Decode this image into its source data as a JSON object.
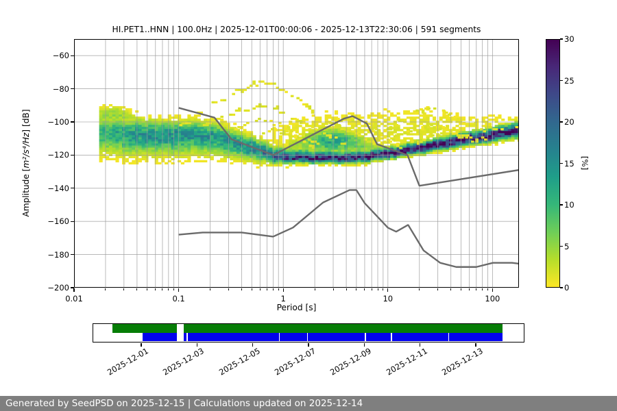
{
  "header": {
    "title": "HI.PET1..HNN | 100.0Hz | 2025-12-01T00:00:06 - 2025-12-13T22:30:06 | 591 segments"
  },
  "footer": {
    "text": "Generated by SeedPSD on 2025-12-15 | Calculations updated on 2025-12-14"
  },
  "meta": {
    "station": "HI.PET1..HNN",
    "sample_rate": "100.0Hz",
    "time_range": "2025-12-01T00:00:06 - 2025-12-13T22:30:06",
    "segments": 591
  },
  "chart_data": {
    "type": "heatmap",
    "title": "HI.PET1..HNN | 100.0Hz | 2025-12-01T00:00:06 - 2025-12-13T22:30:06 | 591 segments",
    "xlabel": "Period [s]",
    "ylabel": "Amplitude [m²/s⁴/Hz] [dB]",
    "ylabel_parts": {
      "prefix": "Amplitude [",
      "math": "m²/s⁴/Hz",
      "suffix": "] [dB]"
    },
    "x_axis": {
      "scale": "log",
      "range": [
        0.01,
        179
      ],
      "ticks": [
        0.01,
        0.1,
        1,
        10,
        100
      ],
      "labels": [
        "0.01",
        "0.1",
        "1",
        "10",
        "100"
      ]
    },
    "y_axis": {
      "range": [
        -200,
        -50
      ],
      "ticks": [
        -60,
        -80,
        -100,
        -120,
        -140,
        -160,
        -180,
        -200
      ]
    },
    "colorbar": {
      "label": "[%]",
      "range": [
        0,
        30
      ],
      "ticks": [
        0,
        5,
        10,
        15,
        20,
        25,
        30
      ],
      "viridis": [
        "#440154",
        "#482878",
        "#3e4989",
        "#31688e",
        "#26828e",
        "#1f9e89",
        "#35b779",
        "#6ece58",
        "#b5de2b",
        "#fde725"
      ]
    },
    "grid": {
      "color": "#9b9b9b"
    },
    "ppsd_band": [
      [
        0.018,
        -106,
        10,
        5.5,
        7,
        -92,
        -127
      ],
      [
        0.03,
        -108,
        13,
        5.5,
        6.5,
        -95,
        -127
      ],
      [
        0.05,
        -108,
        14,
        5,
        6.5,
        -98,
        -128
      ],
      [
        0.09,
        -107.5,
        15,
        4.5,
        6.5,
        -99,
        -128
      ],
      [
        0.15,
        -107.5,
        14,
        4.5,
        6.5,
        -98,
        -126
      ],
      [
        0.25,
        -110,
        14,
        4.5,
        5.5,
        -99,
        -125
      ],
      [
        0.4,
        -114,
        15,
        4,
        4.5,
        -102,
        -125
      ],
      [
        0.6,
        -117.5,
        17,
        3.5,
        3.5,
        -104,
        -126
      ],
      [
        0.8,
        -120.5,
        20,
        3.2,
        2.4,
        -106,
        -126
      ],
      [
        1.2,
        -122,
        24,
        2.8,
        1.8,
        -107,
        -126
      ],
      [
        2,
        -122,
        26,
        2.6,
        1.7,
        -108,
        -126
      ],
      [
        3.5,
        -122,
        27,
        2.4,
        1.7,
        -110,
        -126
      ],
      [
        6,
        -121.5,
        28,
        2.2,
        1.7,
        -112,
        -125.5
      ],
      [
        10,
        -119.5,
        30,
        2.2,
        1.6,
        -113,
        -124.5
      ],
      [
        15,
        -117.5,
        30,
        2.2,
        1.6,
        -112,
        -123
      ],
      [
        25,
        -115,
        30,
        2.3,
        1.7,
        -109.5,
        -121
      ],
      [
        40,
        -112.5,
        30,
        2.4,
        1.8,
        -107,
        -119
      ],
      [
        70,
        -110,
        30,
        2.5,
        1.9,
        -104.5,
        -116.5
      ],
      [
        110,
        -107.5,
        29,
        2.7,
        2.1,
        -102,
        -114
      ],
      [
        179,
        -105.5,
        28,
        2.9,
        2.3,
        -99.5,
        -111.5
      ]
    ],
    "secondary_blob": [
      [
        1.2,
        -114,
        3,
        3.5
      ],
      [
        1.8,
        -112.5,
        7,
        4.2
      ],
      [
        2.6,
        -111.5,
        12,
        4.5
      ],
      [
        3.6,
        -111.5,
        12,
        4.5
      ],
      [
        4.8,
        -112.5,
        8,
        4
      ],
      [
        6.5,
        -114.5,
        5,
        3.5
      ],
      [
        9,
        -116.5,
        2,
        3
      ]
    ],
    "cap_blob": [
      [
        0.018,
        -96,
        4.5,
        2.8
      ],
      [
        0.026,
        -95.5,
        5,
        3
      ],
      [
        0.036,
        -97.5,
        3,
        2.5
      ],
      [
        0.055,
        -100.5,
        1,
        2.2
      ]
    ],
    "halo": [
      [
        0.8,
        -112,
        0.8,
        7
      ],
      [
        1.5,
        -109,
        1.3,
        8
      ],
      [
        3,
        -107,
        1.5,
        8.5
      ],
      [
        6,
        -107,
        1.4,
        8.5
      ],
      [
        12,
        -105.5,
        1.5,
        8
      ],
      [
        25,
        -103.5,
        1.5,
        7.5
      ],
      [
        50,
        -103.5,
        1,
        6
      ],
      [
        100,
        -103,
        1.1,
        5
      ],
      [
        179,
        -103,
        1.2,
        4.5
      ]
    ],
    "outlier_arcs": [
      [
        [
          0.095,
          -103
        ],
        [
          0.14,
          -96
        ],
        [
          0.2,
          -89
        ],
        [
          0.3,
          -83
        ],
        [
          0.45,
          -78
        ],
        [
          0.62,
          -75.5
        ],
        [
          0.8,
          -77
        ],
        [
          1.0,
          -81
        ],
        [
          1.35,
          -86.5
        ],
        [
          1.8,
          -92.5
        ],
        [
          2.4,
          -98
        ],
        [
          3.2,
          -102.5
        ],
        [
          4.5,
          -106
        ],
        [
          6,
          -110
        ],
        [
          7.5,
          -113
        ]
      ],
      [
        [
          0.17,
          -102
        ],
        [
          0.25,
          -97
        ],
        [
          0.38,
          -92.5
        ],
        [
          0.55,
          -90
        ],
        [
          0.75,
          -90.5
        ],
        [
          1.0,
          -94
        ],
        [
          1.4,
          -99
        ],
        [
          2.0,
          -104.5
        ],
        [
          2.8,
          -109
        ],
        [
          3.8,
          -112.5
        ]
      ],
      [
        [
          0.3,
          -104
        ],
        [
          0.45,
          -100
        ],
        [
          0.6,
          -98.5
        ],
        [
          0.8,
          -100
        ],
        [
          1.1,
          -104
        ],
        [
          1.5,
          -108.5
        ],
        [
          2.1,
          -113
        ]
      ],
      [
        [
          0.55,
          -107
        ],
        [
          0.75,
          -104.5
        ],
        [
          1.0,
          -106
        ],
        [
          1.4,
          -110
        ],
        [
          1.9,
          -114
        ]
      ],
      [
        [
          7,
          -111
        ],
        [
          9.5,
          -104.5
        ],
        [
          13,
          -98.5
        ],
        [
          18,
          -93.5
        ],
        [
          24,
          -91.5
        ],
        [
          31,
          -93
        ],
        [
          42,
          -97
        ],
        [
          58,
          -101
        ],
        [
          80,
          -103.5
        ],
        [
          110,
          -104
        ],
        [
          150,
          -103
        ],
        [
          179,
          -102.5
        ]
      ],
      [
        [
          9,
          -112
        ],
        [
          13,
          -107
        ],
        [
          19,
          -103.5
        ],
        [
          26,
          -102.5
        ],
        [
          35,
          -104.5
        ],
        [
          48,
          -108
        ],
        [
          65,
          -111
        ]
      ],
      [
        [
          2.2,
          -104
        ],
        [
          3.0,
          -100
        ],
        [
          4.2,
          -98
        ],
        [
          5.5,
          -100.5
        ],
        [
          7.5,
          -105
        ],
        [
          10,
          -109
        ]
      ],
      [
        [
          12,
          -115
        ],
        [
          18,
          -111
        ],
        [
          27,
          -108
        ],
        [
          40,
          -107
        ],
        [
          60,
          -108.5
        ],
        [
          85,
          -110
        ]
      ]
    ],
    "noise_models": {
      "color": "#6a6a6a",
      "nhnm": [
        [
          0.1,
          -91.5
        ],
        [
          0.22,
          -97.4
        ],
        [
          0.32,
          -110.5
        ],
        [
          0.8,
          -120
        ],
        [
          3.8,
          -98
        ],
        [
          4.6,
          -96.5
        ],
        [
          6.3,
          -101
        ],
        [
          7.9,
          -113.5
        ],
        [
          15.4,
          -120
        ],
        [
          20,
          -138.5
        ],
        [
          354.8,
          -126
        ]
      ],
      "nlnm": [
        [
          0.1,
          -168
        ],
        [
          0.17,
          -166.7
        ],
        [
          0.4,
          -166.7
        ],
        [
          0.8,
          -169.2
        ],
        [
          1.24,
          -163.7
        ],
        [
          2.4,
          -148.6
        ],
        [
          4.3,
          -141.1
        ],
        [
          5,
          -141.1
        ],
        [
          6,
          -149
        ],
        [
          10,
          -163.8
        ],
        [
          12,
          -166.2
        ],
        [
          15.6,
          -162.1
        ],
        [
          21.9,
          -177.5
        ],
        [
          31.6,
          -185
        ],
        [
          45,
          -187.5
        ],
        [
          70,
          -187.5
        ],
        [
          101,
          -185
        ],
        [
          154,
          -185
        ],
        [
          328,
          -187.5
        ]
      ]
    }
  },
  "timeline": {
    "green_color": "#067d06",
    "blue_color": "#0202ee",
    "green_range": [
      0.044,
      0.952
    ],
    "blue_range": [
      0.114,
      0.952
    ],
    "gap": [
      0.195,
      0.211
    ],
    "blue_separators": [
      0.2175,
      0.4317,
      0.4968,
      0.6317,
      0.6921,
      0.8254
    ],
    "ticks": [
      {
        "f": 0.1111,
        "label": "2025-12-01"
      },
      {
        "f": 0.2407,
        "label": "2025-12-03"
      },
      {
        "f": 0.3704,
        "label": "2025-12-05"
      },
      {
        "f": 0.5,
        "label": "2025-12-07"
      },
      {
        "f": 0.6296,
        "label": "2025-12-09"
      },
      {
        "f": 0.7593,
        "label": "2025-12-11"
      },
      {
        "f": 0.8889,
        "label": "2025-12-13"
      }
    ]
  }
}
